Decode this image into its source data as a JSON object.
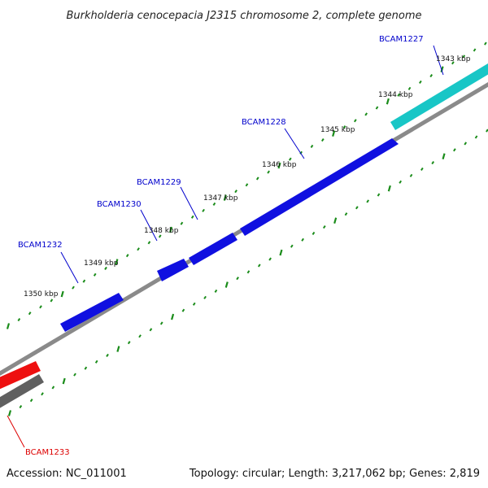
{
  "title": "Burkholderia cenocepacia J2315 chromosome 2, complete genome",
  "footer": {
    "accession": "Accession: NC_011001",
    "summary": "Topology: circular; Length: 3,217,062 bp; Genes: 2,819"
  },
  "colors": {
    "forward_gene": "#1010e0",
    "highlight_gene": "#18c6c6",
    "reverse_gene": "#ee1010",
    "gray_gene": "#606060",
    "backbone": "#8a8a8a",
    "tick": "#1a8c1a",
    "label_blue": "#0000cc",
    "label_red": "#dd0000"
  },
  "ticks": [
    {
      "label": "1343 kbp"
    },
    {
      "label": "1344 kbp"
    },
    {
      "label": "1345 kbp"
    },
    {
      "label": "1346 kbp"
    },
    {
      "label": "1347 kbp"
    },
    {
      "label": "1348 kbp"
    },
    {
      "label": "1349 kbp"
    },
    {
      "label": "1350 kbp"
    }
  ],
  "genes": [
    {
      "name": "BCAM1227",
      "strand": "forward",
      "color_key": "highlight_gene"
    },
    {
      "name": "BCAM1228",
      "strand": "forward",
      "color_key": "forward_gene"
    },
    {
      "name": "BCAM1229",
      "strand": "forward",
      "color_key": "forward_gene"
    },
    {
      "name": "BCAM1230",
      "strand": "forward",
      "color_key": "forward_gene"
    },
    {
      "name": "BCAM1232",
      "strand": "forward",
      "color_key": "forward_gene"
    },
    {
      "name": "BCAM1233",
      "strand": "reverse",
      "color_key": "reverse_gene"
    }
  ]
}
